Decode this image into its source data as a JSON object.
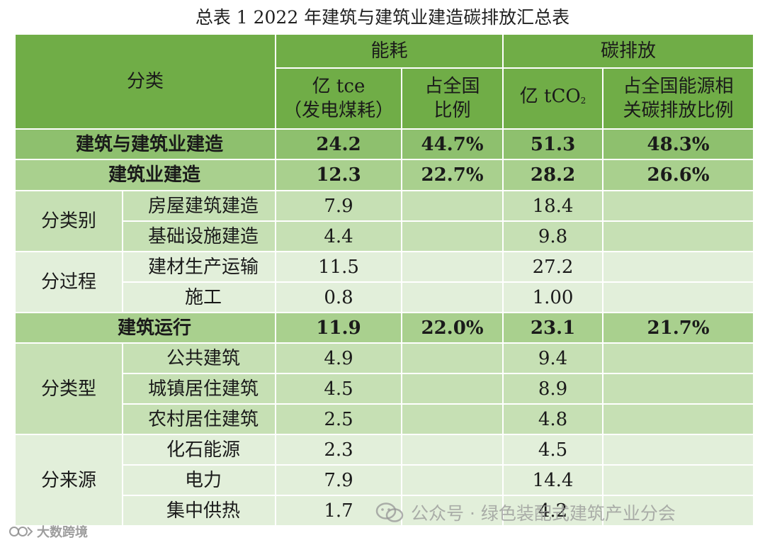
{
  "title": "总表 1 2022 年建筑与建筑业建造碳排放汇总表",
  "header": {
    "category": "分类",
    "energy_group": "能耗",
    "carbon_group": "碳排放",
    "energy_unit": "亿 tce（发电煤耗）",
    "energy_unit_line1": "亿 tce",
    "energy_unit_line2": "（发电煤耗）",
    "energy_share": "占全国比例",
    "energy_share_line1": "占全国",
    "energy_share_line2": "比例",
    "carbon_unit_prefix": "亿 tCO",
    "carbon_unit_sub": "2",
    "carbon_share": "占全国能源相关碳排放比例",
    "carbon_share_line1": "占全国能源相",
    "carbon_share_line2": "关碳排放比例"
  },
  "rows": {
    "total": {
      "label": "建筑与建筑业建造",
      "energy": "24.2",
      "energy_share": "44.7%",
      "carbon": "51.3",
      "carbon_share": "48.3%"
    },
    "construction": {
      "label": "建筑业建造",
      "energy": "12.3",
      "energy_share": "22.7%",
      "carbon": "28.2",
      "carbon_share": "26.6%"
    },
    "by_category": {
      "group": "分类别",
      "items": [
        {
          "label": "房屋建筑建造",
          "energy": "7.9",
          "carbon": "18.4"
        },
        {
          "label": "基础设施建造",
          "energy": "4.4",
          "carbon": "9.8"
        }
      ]
    },
    "by_process": {
      "group": "分过程",
      "items": [
        {
          "label": "建材生产运输",
          "energy": "11.5",
          "carbon": "27.2"
        },
        {
          "label": "施工",
          "energy": "0.8",
          "carbon": "1.00"
        }
      ]
    },
    "operation": {
      "label": "建筑运行",
      "energy": "11.9",
      "energy_share": "22.0%",
      "carbon": "23.1",
      "carbon_share": "21.7%"
    },
    "by_type": {
      "group": "分类型",
      "items": [
        {
          "label": "公共建筑",
          "energy": "4.9",
          "carbon": "9.4"
        },
        {
          "label": "城镇居住建筑",
          "energy": "4.5",
          "carbon": "8.9"
        },
        {
          "label": "农村居住建筑",
          "energy": "2.5",
          "carbon": "4.8"
        }
      ]
    },
    "by_source": {
      "group": "分来源",
      "items": [
        {
          "label": "化石能源",
          "energy": "2.3",
          "carbon": "4.5"
        },
        {
          "label": "电力",
          "energy": "7.9",
          "carbon": "14.4"
        },
        {
          "label": "集中供热",
          "energy": "1.7",
          "carbon": "4.2"
        }
      ]
    }
  },
  "watermarks": {
    "wechat": "公众号 · 绿色装配式建筑产业分会",
    "site": "大数跨境",
    "wechat_icon": "wechat-icon",
    "site_icon": "logo-icon"
  },
  "colors": {
    "header": "#70ad47",
    "total_row": "#8ec06e",
    "subtotal_row": "#a9d08e",
    "band_a": "#c6e0b4",
    "band_b": "#e2efda"
  }
}
